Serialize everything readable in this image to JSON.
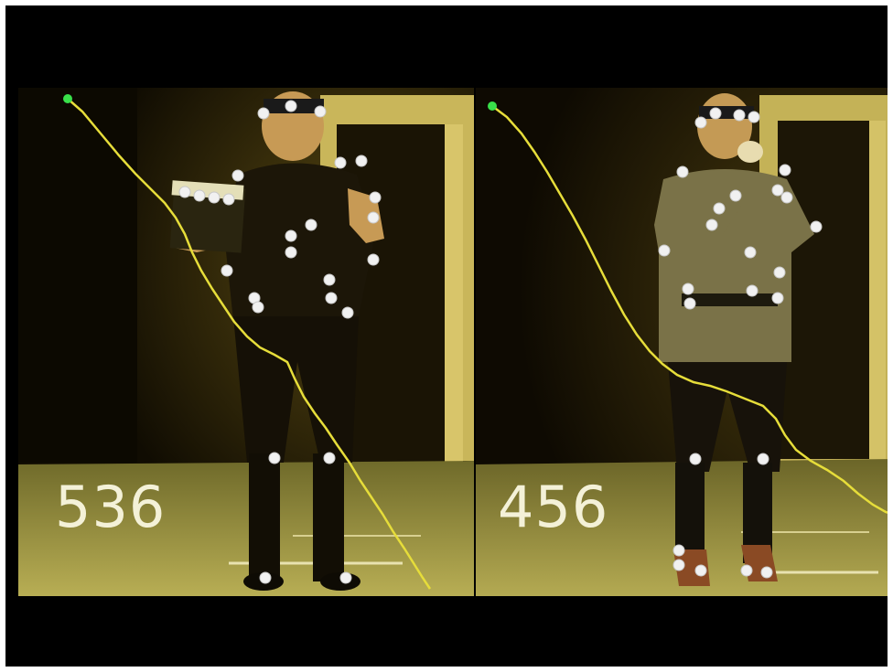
{
  "panels": [
    {
      "frame_number": "536",
      "trace_color": "#e6dd3a",
      "trace_start_marker_color": "#39e04a",
      "marker_color": "#f1f1f1"
    },
    {
      "frame_number": "456",
      "trace_color": "#e6dd3a",
      "trace_start_marker_color": "#39e04a",
      "marker_color": "#f1f1f1"
    }
  ]
}
